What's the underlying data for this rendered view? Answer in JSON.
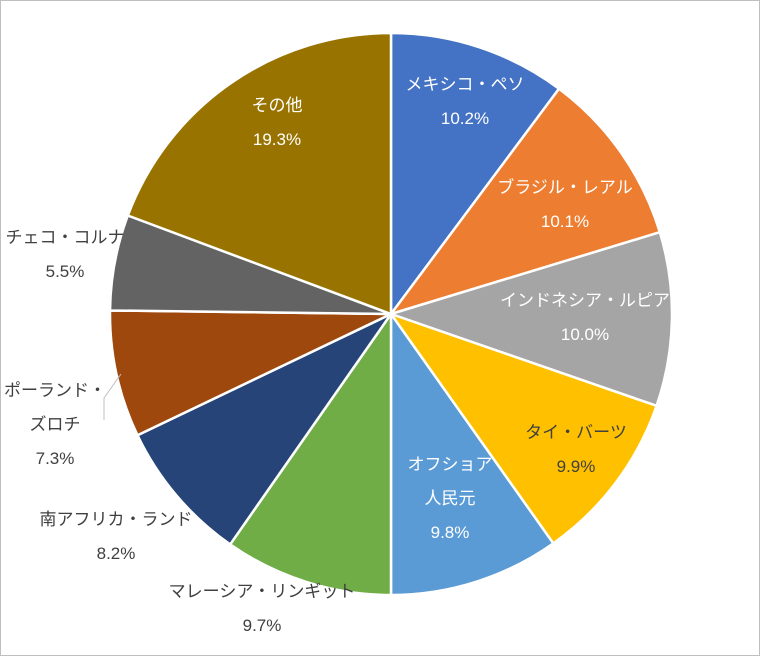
{
  "chart_data": {
    "type": "pie",
    "title": "",
    "slices": [
      {
        "name": "メキシコ・ペソ",
        "value": 10.2,
        "label": "10.2%",
        "color": "#4472C4",
        "label_color": "#ffffff"
      },
      {
        "name": "ブラジル・レアル",
        "value": 10.1,
        "label": "10.1%",
        "color": "#ED7D31",
        "label_color": "#ffffff"
      },
      {
        "name": "インドネシア・ルピア",
        "value": 10.0,
        "label": "10.0%",
        "color": "#A5A5A5",
        "label_color": "#ffffff"
      },
      {
        "name": "タイ・バーツ",
        "value": 9.9,
        "label": "9.9%",
        "color": "#FFC000",
        "label_color": "#404040"
      },
      {
        "name": "オフショア\n人民元",
        "value": 9.8,
        "label": "9.8%",
        "color": "#5B9BD5",
        "label_color": "#ffffff"
      },
      {
        "name": "マレーシア・リンギット",
        "value": 9.7,
        "label": "9.7%",
        "color": "#70AD47",
        "label_color": "#404040"
      },
      {
        "name": "南アフリカ・ランド",
        "value": 8.2,
        "label": "8.2%",
        "color": "#264478",
        "label_color": "#404040"
      },
      {
        "name": "ポーランド・\nズロチ",
        "value": 7.3,
        "label": "7.3%",
        "color": "#9E480E",
        "label_color": "#404040"
      },
      {
        "name": "チェコ・コルナ",
        "value": 5.5,
        "label": "5.5%",
        "color": "#636363",
        "label_color": "#404040"
      },
      {
        "name": "その他",
        "value": 19.3,
        "label": "19.3%",
        "color": "#997300",
        "label_color": "#ffffff"
      }
    ],
    "start_angle": "12 o'clock",
    "direction": "clockwise",
    "legend": "none"
  }
}
